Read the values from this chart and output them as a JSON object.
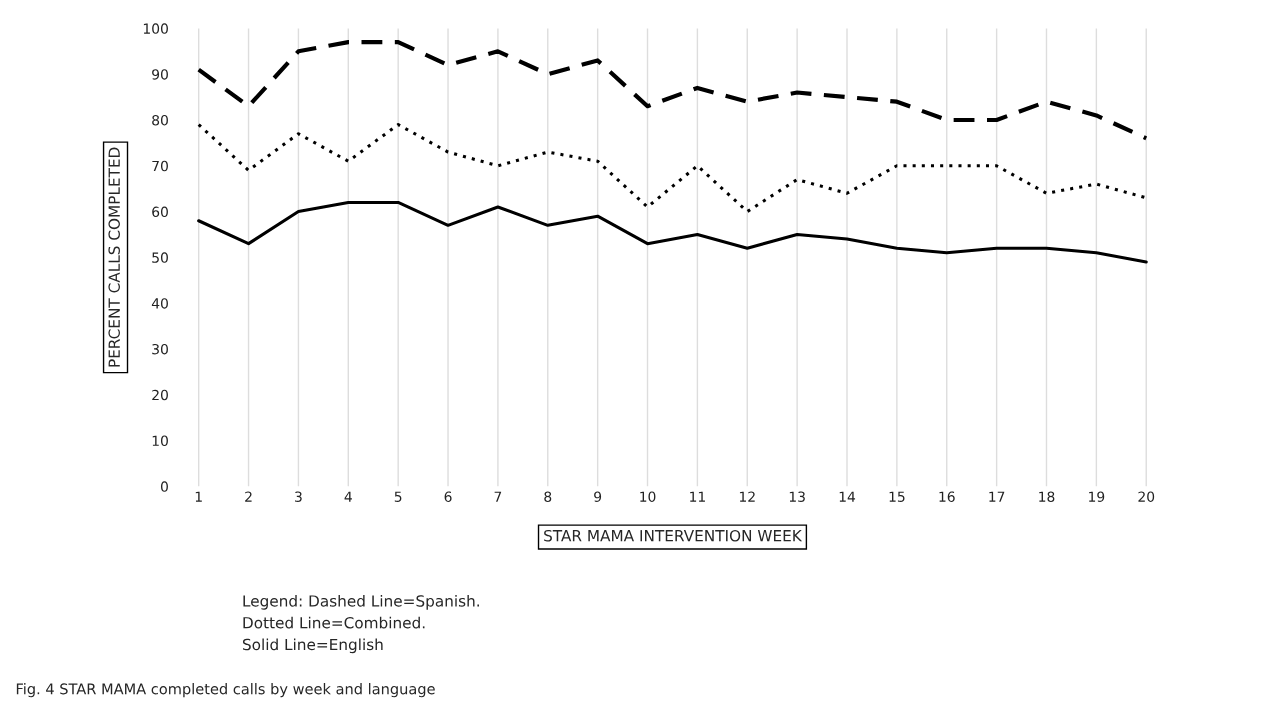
{
  "chart_data": {
    "type": "line",
    "xlabel": "STAR MAMA INTERVENTION WEEK",
    "ylabel": "PERCENT CALLS COMPLETED",
    "categories": [
      "1",
      "2",
      "3",
      "4",
      "5",
      "6",
      "7",
      "8",
      "9",
      "10",
      "11",
      "12",
      "13",
      "14",
      "15",
      "16",
      "17",
      "18",
      "19",
      "20"
    ],
    "series": [
      {
        "color": "#000000",
        "line_style": "dashed",
        "values": [
          91,
          83,
          95,
          97,
          97,
          92,
          95,
          90,
          93,
          83,
          87,
          84,
          86,
          85,
          84,
          80,
          80,
          84,
          81,
          76
        ]
      },
      {
        "color": "#000000",
        "line_style": "dotted",
        "values": [
          79,
          69,
          77,
          71,
          79,
          73,
          70,
          73,
          71,
          61,
          70,
          60,
          67,
          64,
          70,
          70,
          70,
          64,
          66,
          63
        ]
      },
      {
        "color": "#000000",
        "line_style": "solid",
        "values": [
          58,
          53,
          60,
          62,
          62,
          57,
          61,
          57,
          59,
          53,
          55,
          52,
          55,
          54,
          52,
          51,
          52,
          52,
          51,
          49
        ]
      }
    ],
    "ylim": [
      0,
      100
    ],
    "yticks": [
      0,
      10,
      20,
      30,
      40,
      50,
      60,
      70,
      80,
      90,
      100
    ],
    "grid": "x",
    "legend": false,
    "annotations": [
      "Legend: Dashed Line=Spanish.\nDotted Line=Combined.\nSolid Line=English",
      "Fig. 4 STAR MAMA completed calls by week and language"
    ]
  }
}
